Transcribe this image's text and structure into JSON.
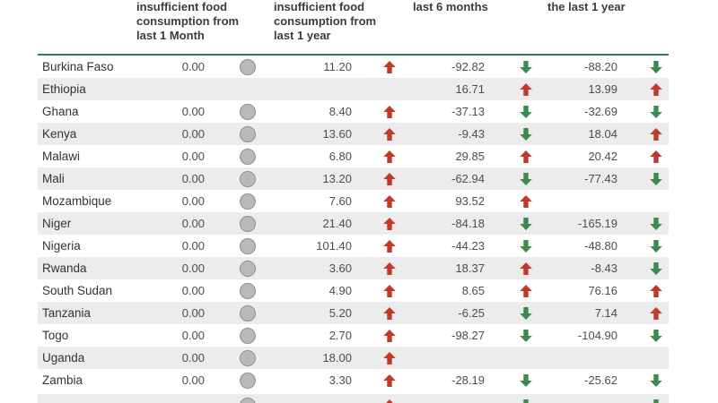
{
  "colors": {
    "up_arrow": "#c0392b",
    "down_arrow": "#3c8a4c",
    "neutral_circle": "#b9b9b9",
    "neutral_circle_border": "#8f8f8f",
    "header_rule": "#2a7d62",
    "row_stripe": "#ececec",
    "header_text": "#3c3c3c",
    "cell_text": "#4d4d4d",
    "country_text": "#333333"
  },
  "chart_data": {
    "type": "table",
    "columns": [
      "",
      "insufficient food consumption from last 1 Month",
      "insufficient food consumption from last 1 year",
      "last 6 months",
      "the last 1 year"
    ],
    "icon_legend": {
      "flat": "gray-circle",
      "up": "red-up-arrow",
      "down": "green-down-arrow"
    },
    "rows": [
      {
        "country": "Burkina Faso",
        "last_month_value": "0.00",
        "last_month_trend": "flat",
        "last_year_value": "11.20",
        "last_year_trend": "up",
        "six_month_value": "-92.82",
        "six_month_trend": "down",
        "one_year_value": "-88.20",
        "one_year_trend": "down"
      },
      {
        "country": "Ethiopia",
        "last_month_value": "",
        "last_month_trend": "none",
        "last_year_value": "",
        "last_year_trend": "none",
        "six_month_value": "16.71",
        "six_month_trend": "up",
        "one_year_value": "13.99",
        "one_year_trend": "up"
      },
      {
        "country": "Ghana",
        "last_month_value": "0.00",
        "last_month_trend": "flat",
        "last_year_value": "8.40",
        "last_year_trend": "up",
        "six_month_value": "-37.13",
        "six_month_trend": "down",
        "one_year_value": "-32.69",
        "one_year_trend": "down"
      },
      {
        "country": "Kenya",
        "last_month_value": "0.00",
        "last_month_trend": "flat",
        "last_year_value": "13.60",
        "last_year_trend": "up",
        "six_month_value": "-9.43",
        "six_month_trend": "down",
        "one_year_value": "18.04",
        "one_year_trend": "up"
      },
      {
        "country": "Malawi",
        "last_month_value": "0.00",
        "last_month_trend": "flat",
        "last_year_value": "6.80",
        "last_year_trend": "up",
        "six_month_value": "29.85",
        "six_month_trend": "up",
        "one_year_value": "20.42",
        "one_year_trend": "up"
      },
      {
        "country": "Mali",
        "last_month_value": "0.00",
        "last_month_trend": "flat",
        "last_year_value": "13.20",
        "last_year_trend": "up",
        "six_month_value": "-62.94",
        "six_month_trend": "down",
        "one_year_value": "-77.43",
        "one_year_trend": "down"
      },
      {
        "country": "Mozambique",
        "last_month_value": "0.00",
        "last_month_trend": "flat",
        "last_year_value": "7.60",
        "last_year_trend": "up",
        "six_month_value": "93.52",
        "six_month_trend": "up",
        "one_year_value": "",
        "one_year_trend": "none"
      },
      {
        "country": "Niger",
        "last_month_value": "0.00",
        "last_month_trend": "flat",
        "last_year_value": "21.40",
        "last_year_trend": "up",
        "six_month_value": "-84.18",
        "six_month_trend": "down",
        "one_year_value": "-165.19",
        "one_year_trend": "down"
      },
      {
        "country": "Nigeria",
        "last_month_value": "0.00",
        "last_month_trend": "flat",
        "last_year_value": "101.40",
        "last_year_trend": "up",
        "six_month_value": "-44.23",
        "six_month_trend": "down",
        "one_year_value": "-48.80",
        "one_year_trend": "down"
      },
      {
        "country": "Rwanda",
        "last_month_value": "0.00",
        "last_month_trend": "flat",
        "last_year_value": "3.60",
        "last_year_trend": "up",
        "six_month_value": "18.37",
        "six_month_trend": "up",
        "one_year_value": "-8.43",
        "one_year_trend": "down"
      },
      {
        "country": "South Sudan",
        "last_month_value": "0.00",
        "last_month_trend": "flat",
        "last_year_value": "4.90",
        "last_year_trend": "up",
        "six_month_value": "8.65",
        "six_month_trend": "up",
        "one_year_value": "76.16",
        "one_year_trend": "up"
      },
      {
        "country": "Tanzania",
        "last_month_value": "0.00",
        "last_month_trend": "flat",
        "last_year_value": "5.20",
        "last_year_trend": "up",
        "six_month_value": "-6.25",
        "six_month_trend": "down",
        "one_year_value": "7.14",
        "one_year_trend": "up"
      },
      {
        "country": "Togo",
        "last_month_value": "0.00",
        "last_month_trend": "flat",
        "last_year_value": "2.70",
        "last_year_trend": "up",
        "six_month_value": "-98.27",
        "six_month_trend": "down",
        "one_year_value": "-104.90",
        "one_year_trend": "down"
      },
      {
        "country": "Uganda",
        "last_month_value": "0.00",
        "last_month_trend": "flat",
        "last_year_value": "18.00",
        "last_year_trend": "up",
        "six_month_value": "",
        "six_month_trend": "none",
        "one_year_value": "",
        "one_year_trend": "none"
      },
      {
        "country": "Zambia",
        "last_month_value": "0.00",
        "last_month_trend": "flat",
        "last_year_value": "3.30",
        "last_year_trend": "up",
        "six_month_value": "-28.19",
        "six_month_trend": "down",
        "one_year_value": "-25.62",
        "one_year_trend": "down"
      }
    ],
    "partial_next_row": {
      "country": "",
      "last_month_value": "",
      "last_month_trend": "flat",
      "last_year_value": "",
      "last_year_trend": "up",
      "six_month_value": "",
      "six_month_trend": "down",
      "one_year_value": "",
      "one_year_trend": "down"
    }
  }
}
